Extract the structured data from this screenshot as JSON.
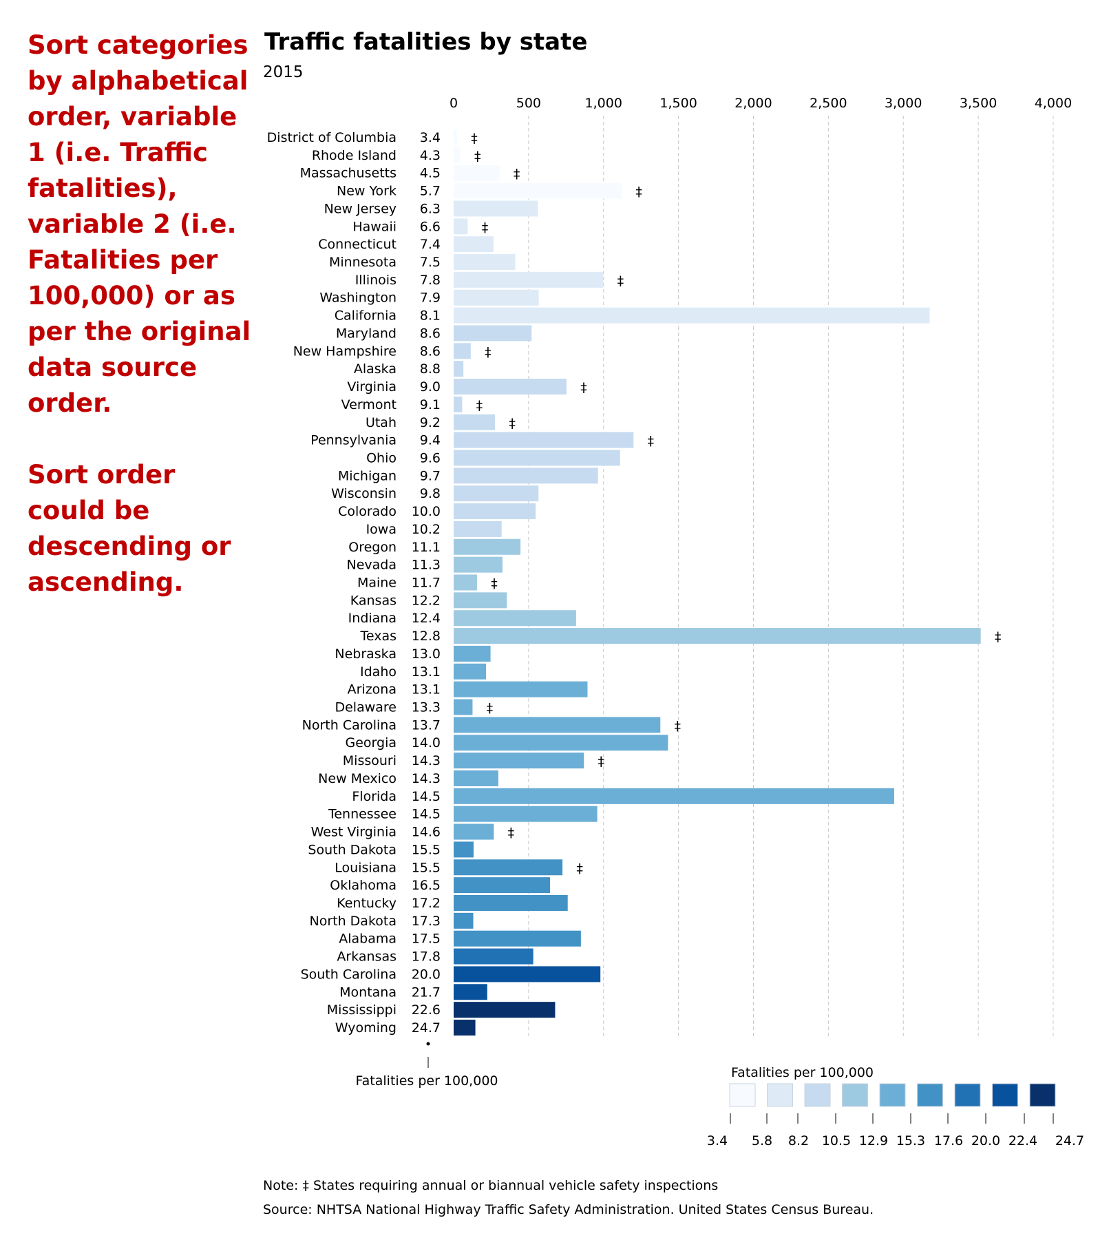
{
  "annotation": {
    "paragraph1": "Sort categories by alphabetical order, variable 1 (i.e. Traffic fatalities), variable 2 (i.e. Fatalities per 100,000) or as per the original data source order.",
    "paragraph2": "Sort order could be descending or ascending."
  },
  "chart_data": {
    "type": "bar",
    "orientation": "horizontal",
    "title": "Traffic fatalities by state",
    "subtitle": "2015",
    "xlim": [
      0,
      4000
    ],
    "x_ticks": [
      "0",
      "500",
      "1,000",
      "1,500",
      "2,000",
      "2,500",
      "3,000",
      "3,500",
      "4,000"
    ],
    "x_tick_values": [
      0,
      500,
      1000,
      1500,
      2000,
      2500,
      3000,
      3500,
      4000
    ],
    "grid": "vertical dashed",
    "dagger_symbol": "‡",
    "rate_axis_label": "Fatalities per 100,000",
    "states": [
      "District of Columbia",
      "Rhode Island",
      "Massachusetts",
      "New York",
      "New Jersey",
      "Hawaii",
      "Connecticut",
      "Minnesota",
      "Illinois",
      "Washington",
      "California",
      "Maryland",
      "New Hampshire",
      "Alaska",
      "Virginia",
      "Vermont",
      "Utah",
      "Pennsylvania",
      "Ohio",
      "Michigan",
      "Wisconsin",
      "Colorado",
      "Iowa",
      "Oregon",
      "Nevada",
      "Maine",
      "Kansas",
      "Indiana",
      "Texas",
      "Nebraska",
      "Idaho",
      "Arizona",
      "Delaware",
      "North Carolina",
      "Georgia",
      "Missouri",
      "New Mexico",
      "Florida",
      "Tennessee",
      "West Virginia",
      "South Dakota",
      "Louisiana",
      "Oklahoma",
      "Kentucky",
      "North Dakota",
      "Alabama",
      "Arkansas",
      "South Carolina",
      "Montana",
      "Mississippi",
      "Wyoming"
    ],
    "rate_labels": [
      "3.4",
      "4.3",
      "4.5",
      "5.7",
      "6.3",
      "6.6",
      "7.4",
      "7.5",
      "7.8",
      "7.9",
      "8.1",
      "8.6",
      "8.6",
      "8.8",
      "9.0",
      "9.1",
      "9.2",
      "9.4",
      "9.6",
      "9.7",
      "9.8",
      "10.0",
      "10.2",
      "11.1",
      "11.3",
      "11.7",
      "12.2",
      "12.4",
      "12.8",
      "13.0",
      "13.1",
      "13.1",
      "13.3",
      "13.7",
      "14.0",
      "14.3",
      "14.3",
      "14.5",
      "14.5",
      "14.6",
      "15.5",
      "15.5",
      "16.5",
      "17.2",
      "17.3",
      "17.5",
      "17.8",
      "20.0",
      "21.7",
      "22.6",
      "24.7"
    ],
    "rates": [
      3.4,
      4.3,
      4.5,
      5.7,
      6.3,
      6.6,
      7.4,
      7.5,
      7.8,
      7.9,
      8.1,
      8.6,
      8.6,
      8.8,
      9.0,
      9.1,
      9.2,
      9.4,
      9.6,
      9.7,
      9.8,
      10.0,
      10.2,
      11.1,
      11.3,
      11.7,
      12.2,
      12.4,
      12.8,
      13.0,
      13.1,
      13.1,
      13.3,
      13.7,
      14.0,
      14.3,
      14.3,
      14.5,
      14.5,
      14.6,
      15.5,
      15.5,
      16.5,
      17.2,
      17.3,
      17.5,
      17.8,
      20.0,
      21.7,
      22.6,
      24.7
    ],
    "fatalities": [
      23,
      45,
      306,
      1121,
      562,
      94,
      266,
      411,
      998,
      568,
      3176,
      520,
      114,
      65,
      753,
      57,
      276,
      1200,
      1110,
      963,
      566,
      547,
      320,
      446,
      326,
      156,
      355,
      817,
      3516,
      246,
      216,
      893,
      126,
      1379,
      1430,
      869,
      298,
      2939,
      958,
      268,
      133,
      726,
      643,
      761,
      131,
      849,
      531,
      979,
      224,
      677,
      145
    ],
    "inspections": [
      true,
      true,
      true,
      true,
      false,
      true,
      false,
      false,
      true,
      false,
      false,
      false,
      true,
      false,
      true,
      true,
      true,
      true,
      false,
      false,
      false,
      false,
      false,
      false,
      false,
      true,
      false,
      false,
      true,
      false,
      false,
      false,
      true,
      true,
      false,
      true,
      false,
      false,
      false,
      true,
      false,
      true,
      false,
      false,
      false,
      false,
      false,
      false,
      false,
      false,
      false
    ],
    "legend": {
      "title": "Fatalities per 100,000",
      "breaks": [
        "3.4",
        "5.8",
        "8.2",
        "10.5",
        "12.9",
        "15.3",
        "17.6",
        "20.0",
        "22.4",
        "24.7"
      ],
      "colors": [
        "#f7fbff",
        "#deebf7",
        "#c6dbef",
        "#9ecae1",
        "#6baed6",
        "#4292c6",
        "#2171b5",
        "#08519c",
        "#08306b"
      ]
    },
    "note": "Note: ‡ States requiring annual or biannual vehicle safety inspections",
    "source": "Source: NHTSA National Highway Traffic Safety Administration. United States Census Bureau."
  }
}
